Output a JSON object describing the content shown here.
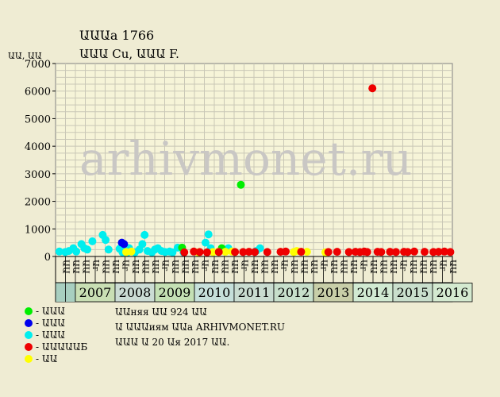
{
  "header": {
    "title": "ԱԱԱа 1766",
    "subtitle": "ԱԱԱ Cu, ԱԱԱ F.",
    "y_unit": "ԱԱ, ԱԱ"
  },
  "watermark": "arhivmonet.ru",
  "footer": {
    "line1": "ԱԱняя ԱԱ 924 ԱԱ",
    "line2": "Ա ԱԱԱиям ԱԱа ARHIVMONET.RU",
    "line3": "ԱԱԱ Ա 20 Աя 2017 ԱԱ."
  },
  "legend": [
    {
      "label": "- ԱԱԱ",
      "color": "#00ee00"
    },
    {
      "label": "- ԱԱԱ",
      "color": "#0000ee"
    },
    {
      "label": "- ԱԱԱ",
      "color": "#00eeee"
    },
    {
      "label": "- ԱԱԱԱԱБ",
      "color": "#ee0000"
    },
    {
      "label": "- ԱԱ",
      "color": "#ffff00"
    }
  ],
  "chart_data": {
    "type": "scatter",
    "ylim": [
      0,
      7000
    ],
    "yticks": [
      0,
      1000,
      2000,
      3000,
      4000,
      5000,
      6000,
      7000
    ],
    "grid": true,
    "condition_labels": [
      "ԱԱ",
      "ԱԱ",
      "ԱԱ",
      "Աг",
      "ԱԱ",
      "ԱԱ",
      "Աг",
      "ԱԱ",
      "ԱԱ",
      "ԱԱ",
      "Աг",
      "ԱԱ",
      "ԱԱ",
      "ԱԱ",
      "Աг",
      "ԱԱ",
      "ԱԱ",
      "ԱԱ",
      "Աг",
      "ԱԱ",
      "ԱԱ",
      "ԱԱ",
      "Աг",
      "ԱԱ",
      "ԱԱ",
      "ԱԱ",
      "Աг",
      "ԱԱ",
      "ԱԱ",
      "ԱԱ",
      "Աг",
      "ԱԱ",
      "ԱԱ",
      "ԱԱ",
      "Աг",
      "ԱԱ",
      "ԱԱ",
      "ԱԱ",
      "Աг",
      "ԱԱ"
    ],
    "years": [
      {
        "label": "2007",
        "color": "#c9dfb4"
      },
      {
        "label": "2008",
        "color": "#cbdcd4"
      },
      {
        "label": "2009",
        "color": "#c4e0b4"
      },
      {
        "label": "2010",
        "color": "#c6e0da"
      },
      {
        "label": "2011",
        "color": "#c9dcd0"
      },
      {
        "label": "2012",
        "color": "#c7dfcb"
      },
      {
        "label": "2013",
        "color": "#c8cea8"
      },
      {
        "label": "2014",
        "color": "#d1ead2"
      },
      {
        "label": "2015",
        "color": "#c9dfcc"
      },
      {
        "label": "2016",
        "color": "#d4ead0"
      }
    ],
    "series": [
      {
        "color": "#00eeee",
        "points": [
          [
            0.3,
            180
          ],
          [
            1.1,
            160
          ],
          [
            1.6,
            200
          ],
          [
            2.2,
            300
          ],
          [
            2.6,
            180
          ],
          [
            3.3,
            450
          ],
          [
            3.7,
            300
          ],
          [
            4.1,
            250
          ],
          [
            4.8,
            550
          ],
          [
            6.2,
            780
          ],
          [
            6.6,
            600
          ],
          [
            7.0,
            250
          ],
          [
            8.5,
            280
          ],
          [
            8.9,
            150
          ],
          [
            9.3,
            350
          ],
          [
            9.6,
            150
          ],
          [
            9.8,
            300
          ],
          [
            10.0,
            200
          ],
          [
            10.6,
            150
          ],
          [
            11.2,
            250
          ],
          [
            11.6,
            450
          ],
          [
            11.9,
            780
          ],
          [
            12.3,
            200
          ],
          [
            12.9,
            150
          ],
          [
            13.3,
            250
          ],
          [
            13.7,
            300
          ],
          [
            14.2,
            200
          ],
          [
            14.7,
            160
          ],
          [
            15.3,
            180
          ],
          [
            15.7,
            150
          ],
          [
            16.4,
            320
          ],
          [
            17.2,
            150
          ],
          [
            20.2,
            500
          ],
          [
            20.6,
            800
          ],
          [
            20.9,
            300
          ],
          [
            23.3,
            300
          ],
          [
            27.1,
            200
          ],
          [
            27.6,
            300
          ]
        ]
      },
      {
        "color": "#0000ee",
        "points": [
          [
            8.8,
            500
          ],
          [
            9.1,
            450
          ]
        ]
      },
      {
        "color": "#00ee00",
        "points": [
          [
            17.0,
            320
          ],
          [
            22.4,
            300
          ],
          [
            25.0,
            2600
          ]
        ]
      },
      {
        "color": "#ffff00",
        "points": [
          [
            9.4,
            160
          ],
          [
            10.1,
            180
          ],
          [
            19.2,
            150
          ],
          [
            21.2,
            160
          ],
          [
            21.9,
            170
          ],
          [
            22.9,
            170
          ],
          [
            23.8,
            180
          ],
          [
            32.2,
            160
          ],
          [
            32.6,
            200
          ],
          [
            34.0,
            170
          ],
          [
            36.5,
            150
          ]
        ]
      },
      {
        "color": "#ee0000",
        "points": [
          [
            17.3,
            150
          ],
          [
            18.6,
            180
          ],
          [
            19.4,
            160
          ],
          [
            20.4,
            150
          ],
          [
            22.0,
            160
          ],
          [
            24.2,
            160
          ],
          [
            25.3,
            160
          ],
          [
            26.1,
            170
          ],
          [
            26.9,
            160
          ],
          [
            28.6,
            160
          ],
          [
            30.4,
            170
          ],
          [
            31.1,
            180
          ],
          [
            33.2,
            170
          ],
          [
            36.9,
            160
          ],
          [
            38.1,
            170
          ],
          [
            39.7,
            160
          ],
          [
            40.6,
            170
          ],
          [
            41.2,
            160
          ],
          [
            41.8,
            180
          ],
          [
            42.2,
            160
          ],
          [
            42.9,
            6100
          ],
          [
            43.6,
            170
          ],
          [
            44.1,
            160
          ],
          [
            45.3,
            170
          ],
          [
            46.1,
            160
          ],
          [
            47.2,
            170
          ],
          [
            47.7,
            160
          ],
          [
            48.6,
            180
          ],
          [
            50.0,
            170
          ],
          [
            51.2,
            160
          ],
          [
            51.9,
            170
          ],
          [
            52.7,
            180
          ],
          [
            53.5,
            160
          ]
        ]
      }
    ]
  }
}
